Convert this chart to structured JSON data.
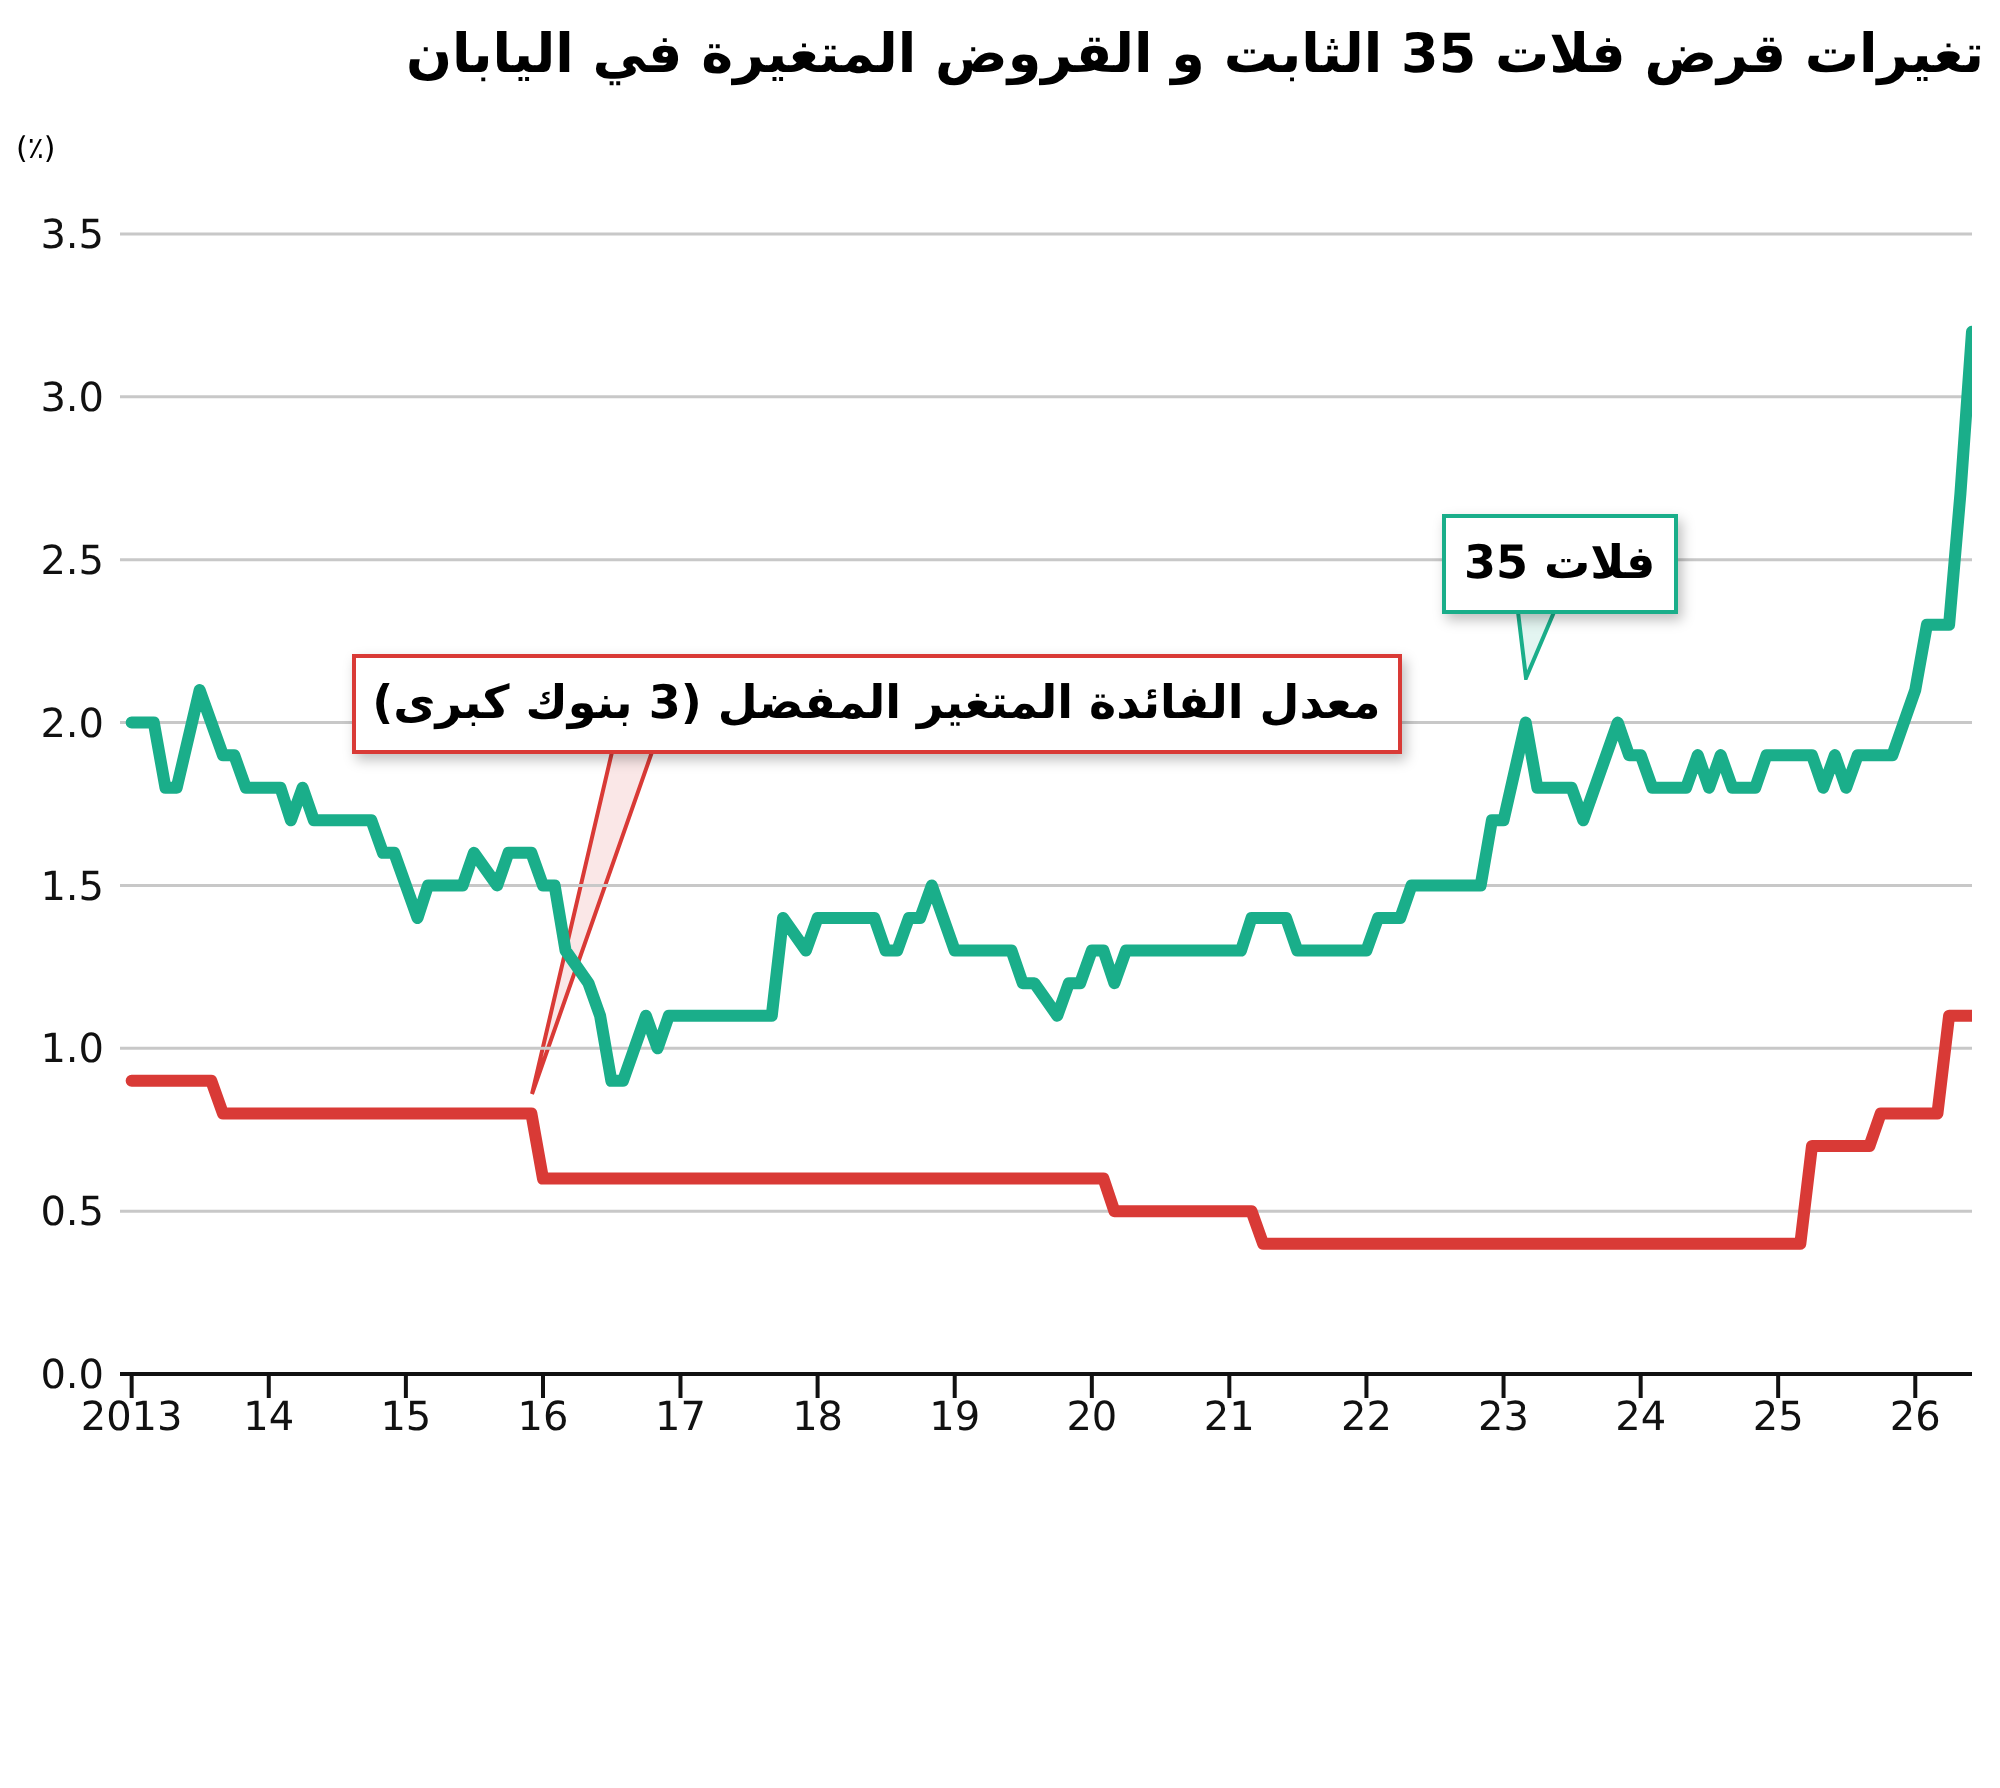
{
  "chart_data": {
    "type": "line",
    "title": "تغيرات قرض فلات 35 الثابت و القروض المتغيرة في اليابان",
    "ylabel": "(٪)",
    "xlim": [
      "2012-12",
      "2026-06"
    ],
    "xticks": [
      {
        "value": "2013",
        "label": "2013"
      },
      {
        "value": "2014",
        "label": "14"
      },
      {
        "value": "2015",
        "label": "15"
      },
      {
        "value": "2016",
        "label": "16"
      },
      {
        "value": "2017",
        "label": "17"
      },
      {
        "value": "2018",
        "label": "18"
      },
      {
        "value": "2019",
        "label": "19"
      },
      {
        "value": "2020",
        "label": "20"
      },
      {
        "value": "2021",
        "label": "21"
      },
      {
        "value": "2022",
        "label": "22"
      },
      {
        "value": "2023",
        "label": "23"
      },
      {
        "value": "2024",
        "label": "24"
      },
      {
        "value": "2025",
        "label": "25"
      },
      {
        "value": "2026",
        "label": "26"
      }
    ],
    "ylim": [
      0,
      3.5
    ],
    "yticks": [
      {
        "value": 0,
        "label": "0.0"
      },
      {
        "value": 0.5,
        "label": "0.5"
      },
      {
        "value": 1,
        "label": "1.0"
      },
      {
        "value": 1.5,
        "label": "1.5"
      },
      {
        "value": 2,
        "label": "2.0"
      },
      {
        "value": 2.5,
        "label": "2.5"
      },
      {
        "value": 3,
        "label": "3.0"
      },
      {
        "value": 3.5,
        "label": "3.5"
      }
    ],
    "grid": "y",
    "legend": false,
    "marker": "none",
    "line_style": "solid",
    "series": [
      {
        "name": "فلات 35",
        "color": "#1aae8a",
        "x": [
          "2013-01",
          "2013-03",
          "2013-04",
          "2013-05",
          "2013-07",
          "2013-09",
          "2013-10",
          "2013-11",
          "2014-02",
          "2014-03",
          "2014-04",
          "2014-05",
          "2014-10",
          "2014-11",
          "2014-12",
          "2015-02",
          "2015-03",
          "2015-06",
          "2015-07",
          "2015-09",
          "2015-10",
          "2015-12",
          "2016-01",
          "2016-02",
          "2016-03",
          "2016-05",
          "2016-06",
          "2016-07",
          "2016-08",
          "2016-10",
          "2016-11",
          "2016-12",
          "2017-09",
          "2017-10",
          "2017-12",
          "2018-01",
          "2018-06",
          "2018-07",
          "2018-08",
          "2018-09",
          "2018-10",
          "2018-11",
          "2019-01",
          "2019-06",
          "2019-07",
          "2019-08",
          "2019-10",
          "2019-11",
          "2019-12",
          "2020-01",
          "2020-02",
          "2020-03",
          "2020-04",
          "2021-02",
          "2021-03",
          "2021-06",
          "2021-07",
          "2022-01",
          "2022-02",
          "2022-04",
          "2022-05",
          "2022-11",
          "2022-12",
          "2023-01",
          "2023-03",
          "2023-04",
          "2023-07",
          "2023-08",
          "2023-11",
          "2023-12",
          "2024-01",
          "2024-02",
          "2024-05",
          "2024-06",
          "2024-07",
          "2024-08",
          "2024-09",
          "2024-11",
          "2024-12",
          "2025-04",
          "2025-05",
          "2025-06",
          "2025-07",
          "2025-08",
          "2025-11",
          "2026-01",
          "2026-02",
          "2026-04",
          "2026-05",
          "2026-06"
        ],
        "values": [
          2.0,
          2.0,
          1.8,
          1.8,
          2.1,
          1.9,
          1.9,
          1.8,
          1.8,
          1.7,
          1.8,
          1.7,
          1.7,
          1.6,
          1.6,
          1.4,
          1.5,
          1.5,
          1.6,
          1.5,
          1.6,
          1.6,
          1.5,
          1.5,
          1.3,
          1.2,
          1.1,
          0.9,
          0.9,
          1.1,
          1.0,
          1.1,
          1.1,
          1.4,
          1.3,
          1.4,
          1.4,
          1.3,
          1.3,
          1.4,
          1.4,
          1.5,
          1.3,
          1.3,
          1.2,
          1.2,
          1.1,
          1.2,
          1.2,
          1.3,
          1.3,
          1.2,
          1.3,
          1.3,
          1.4,
          1.4,
          1.3,
          1.3,
          1.4,
          1.4,
          1.5,
          1.5,
          1.7,
          1.7,
          2.0,
          1.8,
          1.8,
          1.7,
          2.0,
          1.9,
          1.9,
          1.8,
          1.8,
          1.9,
          1.8,
          1.9,
          1.8,
          1.8,
          1.9,
          1.9,
          1.8,
          1.9,
          1.8,
          1.9,
          1.9,
          2.1,
          2.3,
          2.3,
          2.7,
          3.2
        ]
      },
      {
        "name": "معدل الفائدة المتغير المفضل (3 بنوك كبرى)",
        "color": "#d93a36",
        "x": [
          "2013-01",
          "2013-08",
          "2013-09",
          "2015-12",
          "2016-01",
          "2020-02",
          "2020-03",
          "2021-03",
          "2021-04",
          "2025-03",
          "2025-04",
          "2025-09",
          "2025-10",
          "2026-03",
          "2026-04",
          "2026-06"
        ],
        "values": [
          0.9,
          0.9,
          0.8,
          0.8,
          0.6,
          0.6,
          0.5,
          0.5,
          0.4,
          0.4,
          0.7,
          0.7,
          0.8,
          0.8,
          1.1,
          1.1
        ]
      }
    ]
  }
}
